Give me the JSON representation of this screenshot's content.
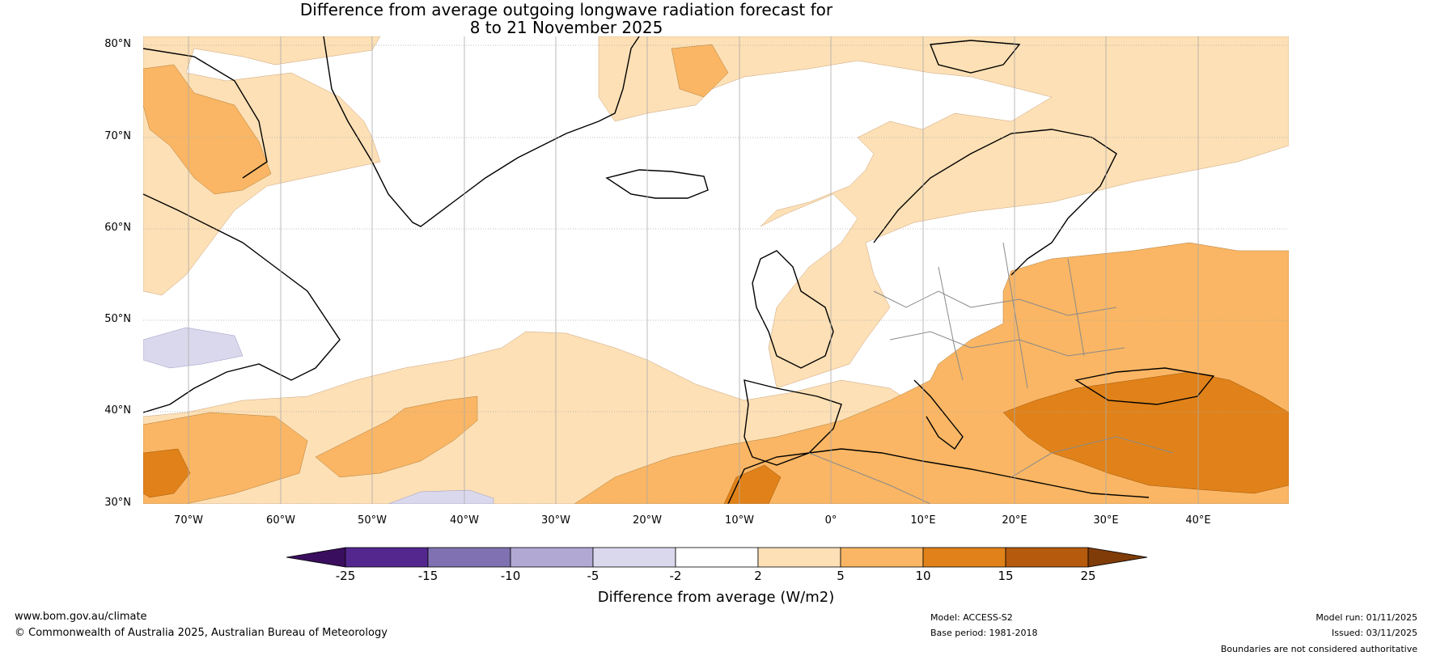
{
  "title": {
    "line1": "Difference from average outgoing longwave radiation forecast for",
    "line2": "8 to 21 November 2025"
  },
  "map": {
    "lat_labels": [
      "80°N",
      "70°N",
      "60°N",
      "50°N",
      "40°N",
      "30°N"
    ],
    "lon_labels": [
      "70°W",
      "60°W",
      "50°W",
      "40°W",
      "30°W",
      "20°W",
      "10°W",
      "0°",
      "10°E",
      "20°E",
      "30°E",
      "40°E"
    ],
    "extent": {
      "lon": [
        -75,
        50
      ],
      "lat": [
        30,
        81
      ]
    }
  },
  "colorbar": {
    "ticks": [
      "-25",
      "-15",
      "-10",
      "-5",
      "-2",
      "2",
      "5",
      "10",
      "15",
      "25"
    ],
    "colors": [
      "#3a0e5e",
      "#54278f",
      "#8072b2",
      "#b1a8d4",
      "#dad8ec",
      "#ffffff",
      "#fde0b5",
      "#fab664",
      "#e08219",
      "#b65a0d",
      "#7f3b08"
    ],
    "label": "Difference from average (W/m2)"
  },
  "footer": {
    "url": "www.bom.gov.au/climate",
    "copyright": "© Commonwealth of Australia 2025, Australian Bureau of Meteorology",
    "model": "Model: ACCESS-S2",
    "base_period": "Base period: 1981-2018",
    "model_run": "Model run: 01/11/2025",
    "issued": "Issued: 03/11/2025",
    "disclaimer": "Boundaries are not considered authoritative"
  }
}
